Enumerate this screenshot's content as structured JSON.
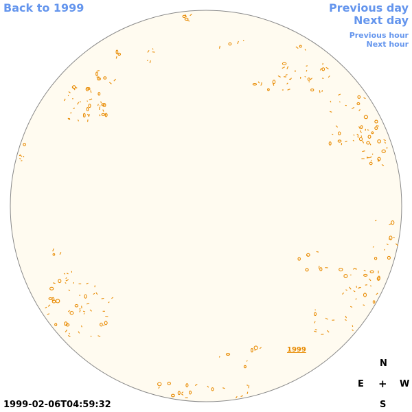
{
  "nav": {
    "back": "Back to 1999",
    "previous_day": "Previous day",
    "next_day": "Next day",
    "previous_hour": "Previous hour",
    "next_hour": "Next hour"
  },
  "timestamp": "1999-02-06T04:59:32",
  "year_link": "1999",
  "compass": {
    "north": "N",
    "east": "E",
    "center": "+",
    "west": "W",
    "south": "S"
  },
  "colors": {
    "disk_fill": "#fffbf0",
    "disk_stroke": "#888888",
    "contour": "#e88a00",
    "link": "#6495ed"
  }
}
